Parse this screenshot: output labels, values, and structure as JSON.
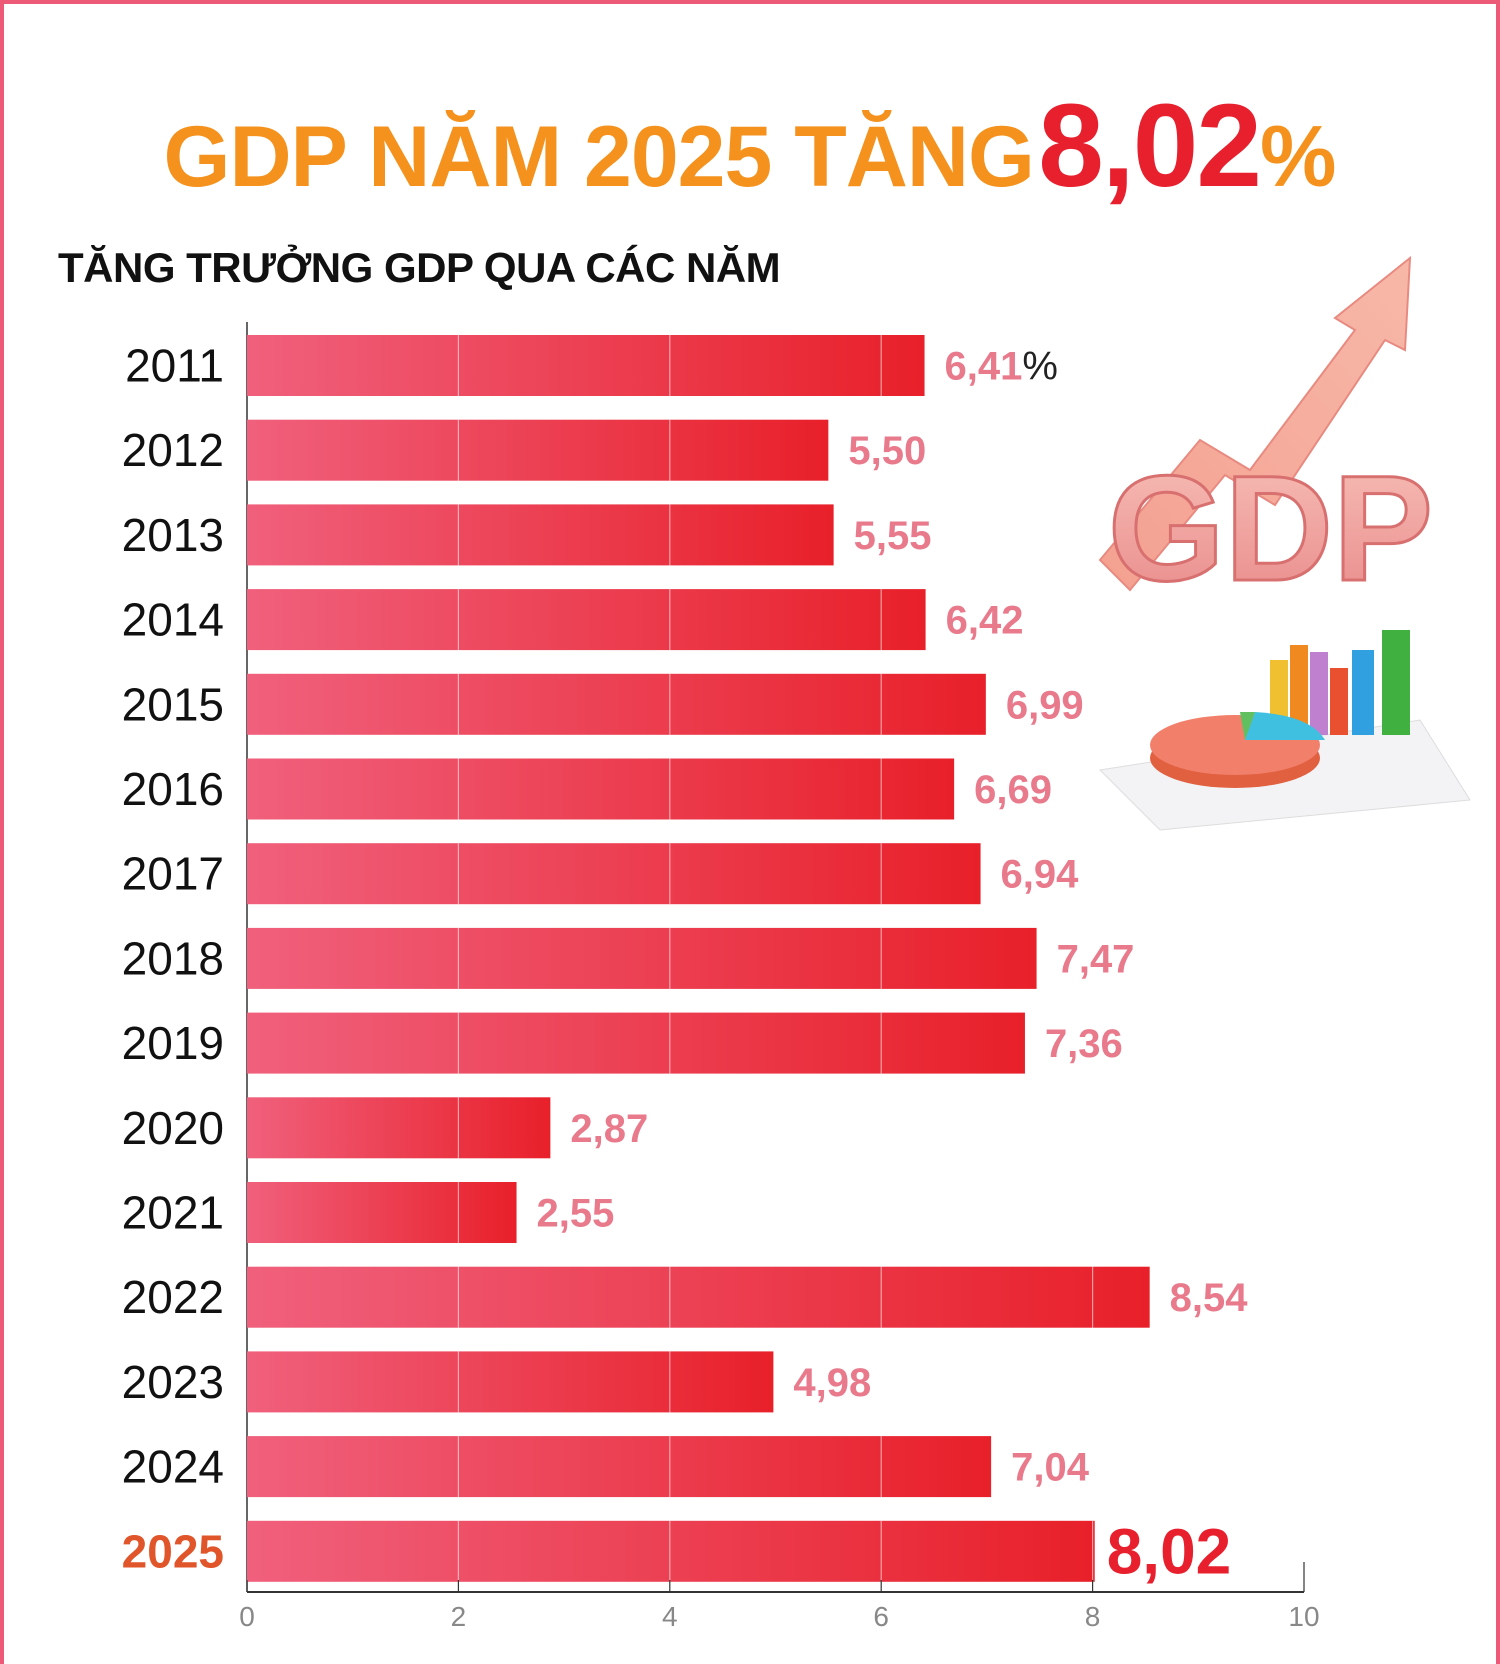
{
  "header": {
    "title_prefix": "GDP NĂM 2025 TĂNG",
    "title_value": "8,02",
    "title_unit": "%",
    "subtitle": "TĂNG TRƯỞNG GDP QUA CÁC NĂM"
  },
  "colors": {
    "title_orange": "#f5921e",
    "highlight_red": "#e8202e",
    "bar_start": "#f0607c",
    "bar_end": "#e8202a",
    "value_label_pink": "#e87a8c",
    "highlight_year": "#e0552a",
    "frame_border": "#ec5a78"
  },
  "chart_data": {
    "type": "bar",
    "orientation": "horizontal",
    "categories": [
      "2011",
      "2012",
      "2013",
      "2014",
      "2015",
      "2016",
      "2017",
      "2018",
      "2019",
      "2020",
      "2021",
      "2022",
      "2023",
      "2024",
      "2025"
    ],
    "values": [
      6.41,
      5.5,
      5.55,
      6.42,
      6.99,
      6.69,
      6.94,
      7.47,
      7.36,
      2.87,
      2.55,
      8.54,
      4.98,
      7.04,
      8.02
    ],
    "value_labels": [
      "6,41",
      "5,50",
      "5,55",
      "6,42",
      "6,99",
      "6,69",
      "6,94",
      "7,47",
      "7,36",
      "2,87",
      "2,55",
      "8,54",
      "4,98",
      "7,04",
      "8,02"
    ],
    "first_label_unit": "%",
    "highlight_category": "2025",
    "xlim": [
      0,
      10
    ],
    "x_ticks": [
      0,
      2,
      4,
      6,
      8,
      10
    ],
    "x_tick_labels": [
      "0",
      "2",
      "4",
      "6",
      "8",
      "10"
    ],
    "grid": true,
    "title": "TĂNG TRƯỞNG GDP QUA CÁC NĂM"
  },
  "illustrations": {
    "gdp_logo_text": "GDP",
    "icons": [
      "rising-arrow-icon",
      "pie-chart-illustration",
      "bar-chart-illustration"
    ]
  }
}
